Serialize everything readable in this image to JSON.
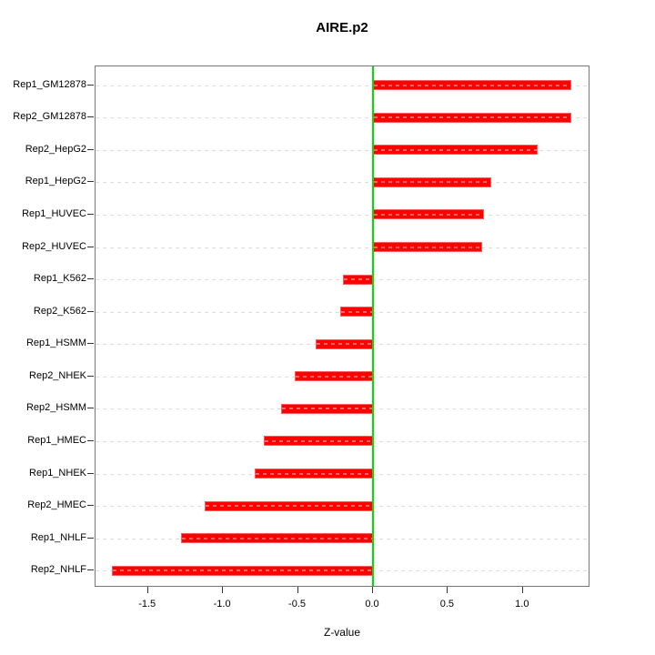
{
  "title": "AIRE.p2",
  "xlabel": "Z-value",
  "chart_data": {
    "type": "bar",
    "orientation": "horizontal",
    "title": "AIRE.p2",
    "xlabel": "Z-value",
    "ylabel": "",
    "categories": [
      "Rep1_GM12878",
      "Rep2_GM12878",
      "Rep2_HepG2",
      "Rep1_HepG2",
      "Rep1_HUVEC",
      "Rep2_HUVEC",
      "Rep1_K562",
      "Rep2_K562",
      "Rep1_HSMM",
      "Rep2_NHEK",
      "Rep2_HSMM",
      "Rep1_HMEC",
      "Rep1_NHEK",
      "Rep2_HMEC",
      "Rep1_NHLF",
      "Rep2_NHLF"
    ],
    "values": [
      1.32,
      1.32,
      1.1,
      0.79,
      0.74,
      0.73,
      -0.2,
      -0.22,
      -0.38,
      -0.52,
      -0.61,
      -0.73,
      -0.79,
      -1.12,
      -1.28,
      -1.74
    ],
    "xlim": [
      -1.85,
      1.45
    ],
    "xticks": [
      -1.5,
      -1.0,
      -0.5,
      0.0,
      0.5,
      1.0
    ],
    "xtick_labels": [
      "-1.5",
      "-1.0",
      "-0.5",
      "0.0",
      "0.5",
      "1.0"
    ],
    "grid": true,
    "legend": null,
    "bar_color": "#ff0000",
    "zero_line_color": "#00e000",
    "grid_color": "#dcdcdc",
    "box_color": "#777777"
  }
}
